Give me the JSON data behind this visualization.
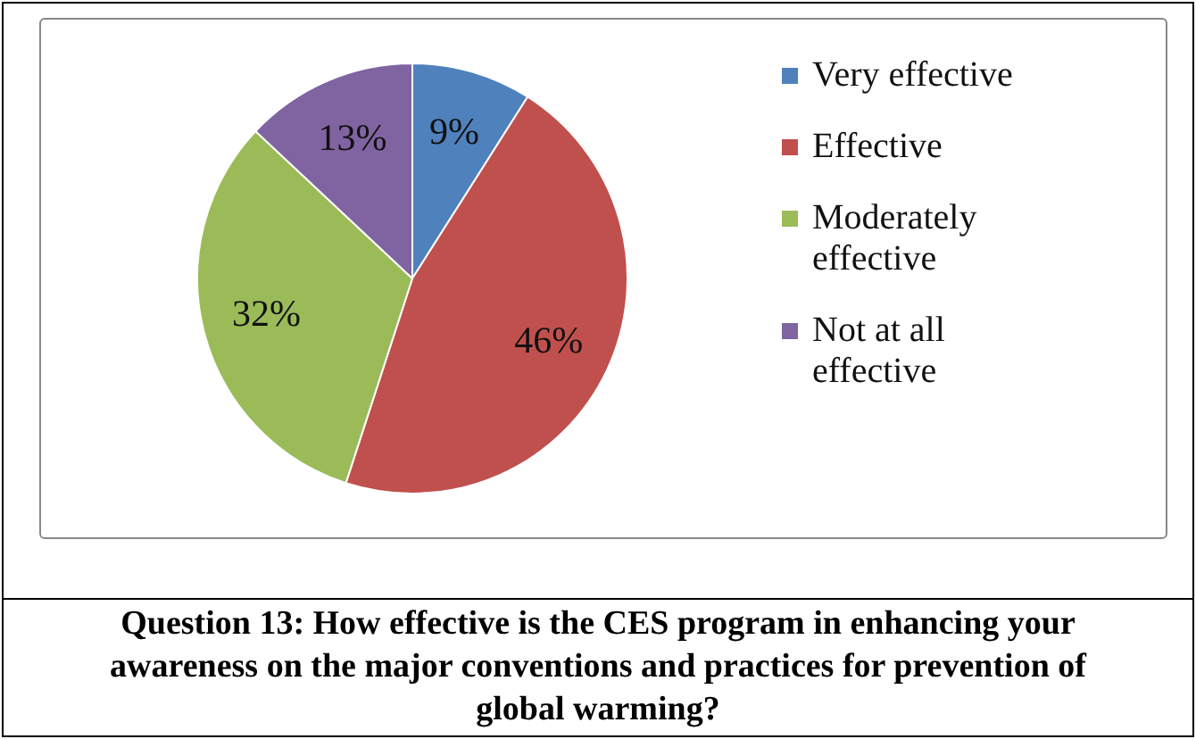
{
  "chart_data": {
    "type": "pie",
    "title": "Question 13: How effective is the CES program in enhancing your awareness on the major conventions and practices for prevention of global warming?",
    "categories": [
      "Very effective",
      "Effective",
      "Moderately effective",
      "Not at all effective"
    ],
    "values": [
      9,
      46,
      32,
      13
    ],
    "colors": [
      "#4f81bd",
      "#c0504d",
      "#9bbb59",
      "#8064a2"
    ],
    "value_labels": [
      "9%",
      "46%",
      "32%",
      "13%"
    ],
    "legend": "right"
  }
}
